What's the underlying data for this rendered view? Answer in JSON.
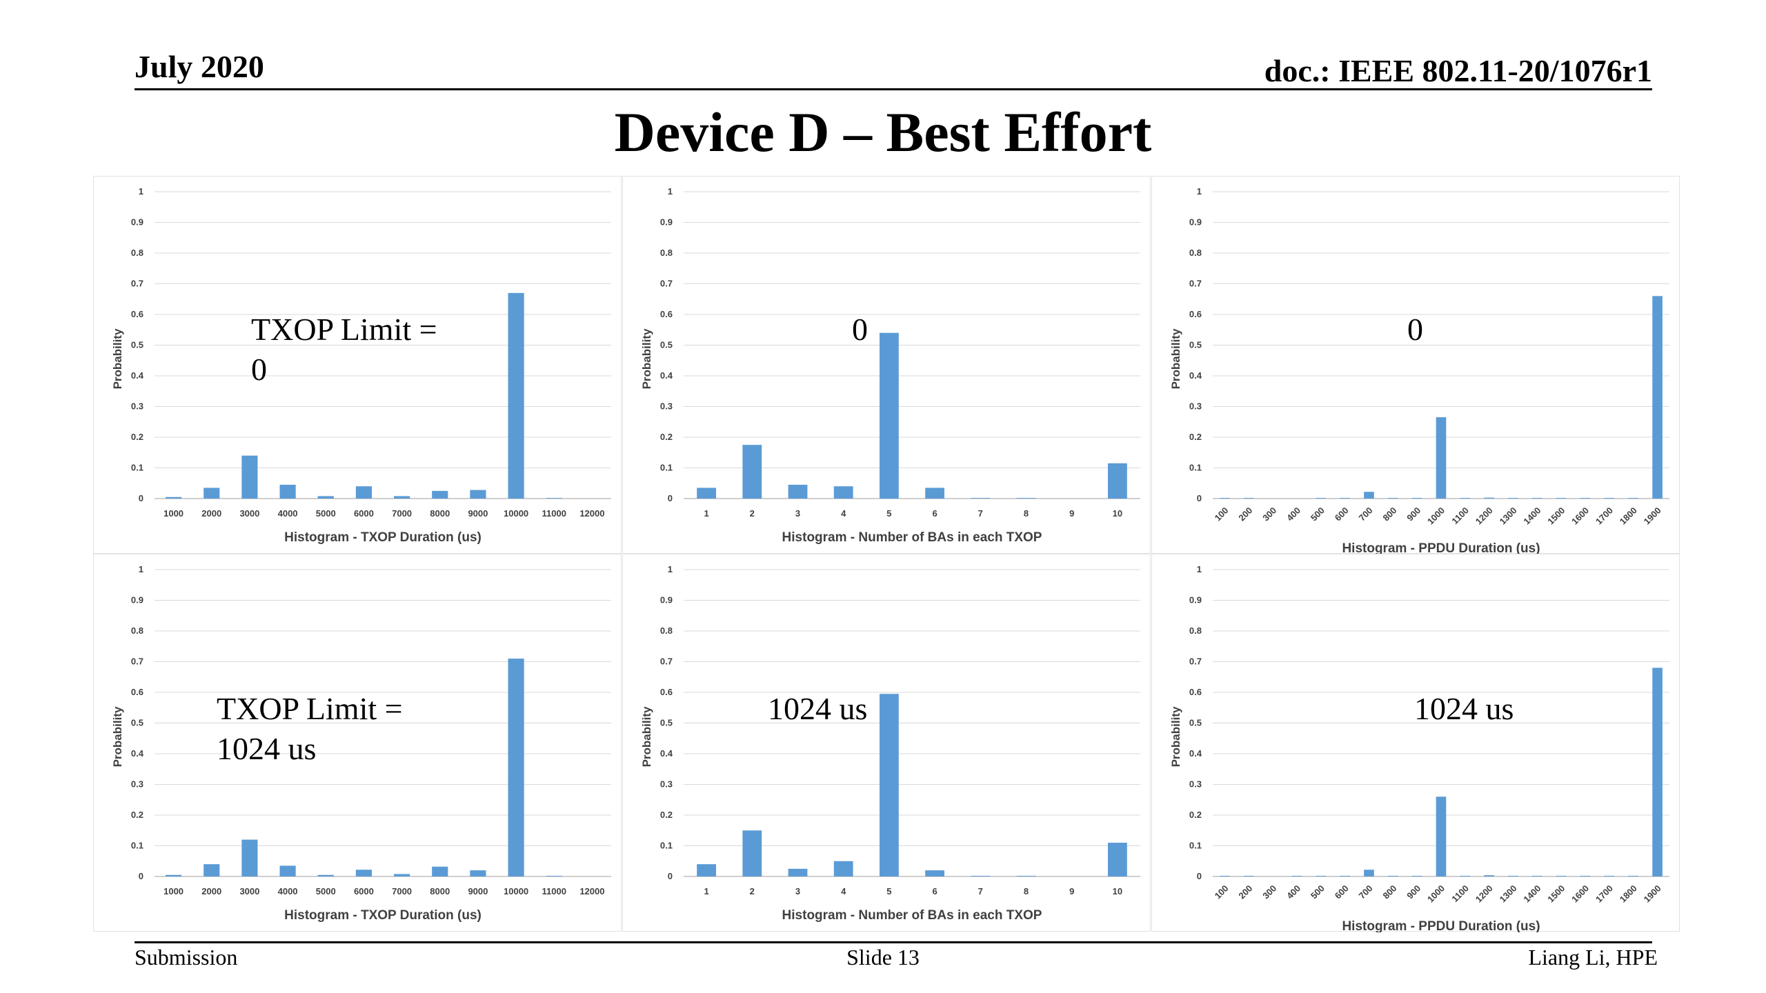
{
  "header": {
    "date": "July 2020",
    "doc_id": "doc.: IEEE 802.11-20/1076r1"
  },
  "slide_title": "Device D – Best Effort",
  "footer": {
    "left": "Submission",
    "center": "Slide 13",
    "right": "Liang Li, HPE"
  },
  "colors": {
    "bar": "#5b9bd5",
    "grid": "#d9d9d9",
    "axis": "#bfbfbf",
    "text": "#404040"
  },
  "overlays": [
    {
      "lines": [
        "TXOP Limit =",
        "0"
      ]
    },
    {
      "lines": [
        "0"
      ]
    },
    {
      "lines": [
        "0"
      ]
    },
    {
      "lines": [
        "TXOP Limit =",
        "1024 us"
      ]
    },
    {
      "lines": [
        "1024 us"
      ]
    },
    {
      "lines": [
        "1024 us"
      ]
    }
  ],
  "chart_data": [
    {
      "type": "bar",
      "xlabel": "Histogram - TXOP Duration (us)",
      "ylabel": "Probability",
      "ylim": [
        0,
        1
      ],
      "yticks": [
        "0",
        "0.1",
        "0.2",
        "0.3",
        "0.4",
        "0.5",
        "0.6",
        "0.7",
        "0.8",
        "0.9",
        "1"
      ],
      "categories": [
        "1000",
        "2000",
        "3000",
        "4000",
        "5000",
        "6000",
        "7000",
        "8000",
        "9000",
        "10000",
        "11000",
        "12000"
      ],
      "values": [
        0.005,
        0.035,
        0.14,
        0.045,
        0.008,
        0.04,
        0.008,
        0.025,
        0.028,
        0.67,
        0.002,
        0
      ],
      "grid": true
    },
    {
      "type": "bar",
      "xlabel": "Histogram - Number of BAs in each TXOP",
      "ylabel": "Probability",
      "ylim": [
        0,
        1
      ],
      "yticks": [
        "0",
        "0.1",
        "0.2",
        "0.3",
        "0.4",
        "0.5",
        "0.6",
        "0.7",
        "0.8",
        "0.9",
        "1"
      ],
      "categories": [
        "1",
        "2",
        "3",
        "4",
        "5",
        "6",
        "7",
        "8",
        "9",
        "10"
      ],
      "values": [
        0.035,
        0.175,
        0.045,
        0.04,
        0.54,
        0.035,
        0.002,
        0.002,
        0,
        0.115
      ],
      "grid": true
    },
    {
      "type": "bar",
      "xlabel": "Histogram - PPDU Duration (us)",
      "ylabel": "Probability",
      "ylim": [
        0,
        1
      ],
      "yticks": [
        "0",
        "0.1",
        "0.2",
        "0.3",
        "0.4",
        "0.5",
        "0.6",
        "0.7",
        "0.8",
        "0.9",
        "1"
      ],
      "rotate_xticks": true,
      "categories": [
        "100",
        "200",
        "300",
        "400",
        "500",
        "600",
        "700",
        "800",
        "900",
        "1000",
        "1100",
        "1200",
        "1300",
        "1400",
        "1500",
        "1600",
        "1700",
        "1800",
        "1900"
      ],
      "values": [
        0.002,
        0.002,
        0,
        0,
        0.002,
        0.002,
        0.022,
        0.002,
        0.002,
        0.265,
        0.002,
        0.003,
        0.002,
        0.002,
        0.002,
        0.002,
        0.002,
        0.002,
        0.66
      ],
      "grid": true
    },
    {
      "type": "bar",
      "xlabel": "Histogram - TXOP Duration (us)",
      "ylabel": "Probability",
      "ylim": [
        0,
        1
      ],
      "yticks": [
        "0",
        "0.1",
        "0.2",
        "0.3",
        "0.4",
        "0.5",
        "0.6",
        "0.7",
        "0.8",
        "0.9",
        "1"
      ],
      "categories": [
        "1000",
        "2000",
        "3000",
        "4000",
        "5000",
        "6000",
        "7000",
        "8000",
        "9000",
        "10000",
        "11000",
        "12000"
      ],
      "values": [
        0.005,
        0.04,
        0.12,
        0.035,
        0.005,
        0.022,
        0.008,
        0.032,
        0.02,
        0.71,
        0.002,
        0
      ],
      "grid": true
    },
    {
      "type": "bar",
      "xlabel": "Histogram - Number of BAs in each TXOP",
      "ylabel": "Probability",
      "ylim": [
        0,
        1
      ],
      "yticks": [
        "0",
        "0.1",
        "0.2",
        "0.3",
        "0.4",
        "0.5",
        "0.6",
        "0.7",
        "0.8",
        "0.9",
        "1"
      ],
      "categories": [
        "1",
        "2",
        "3",
        "4",
        "5",
        "6",
        "7",
        "8",
        "9",
        "10"
      ],
      "values": [
        0.04,
        0.15,
        0.025,
        0.05,
        0.595,
        0.02,
        0.002,
        0.002,
        0,
        0.11
      ],
      "grid": true
    },
    {
      "type": "bar",
      "xlabel": "Histogram - PPDU Duration (us)",
      "ylabel": "Probability",
      "ylim": [
        0,
        1
      ],
      "yticks": [
        "0",
        "0.1",
        "0.2",
        "0.3",
        "0.4",
        "0.5",
        "0.6",
        "0.7",
        "0.8",
        "0.9",
        "1"
      ],
      "rotate_xticks": true,
      "categories": [
        "100",
        "200",
        "300",
        "400",
        "500",
        "600",
        "700",
        "800",
        "900",
        "1000",
        "1100",
        "1200",
        "1300",
        "1400",
        "1500",
        "1600",
        "1700",
        "1800",
        "1900"
      ],
      "values": [
        0.002,
        0.002,
        0,
        0.002,
        0.002,
        0.002,
        0.022,
        0.002,
        0.002,
        0.26,
        0.002,
        0.004,
        0.002,
        0.002,
        0.002,
        0.002,
        0.002,
        0.002,
        0.68
      ],
      "grid": true
    }
  ]
}
